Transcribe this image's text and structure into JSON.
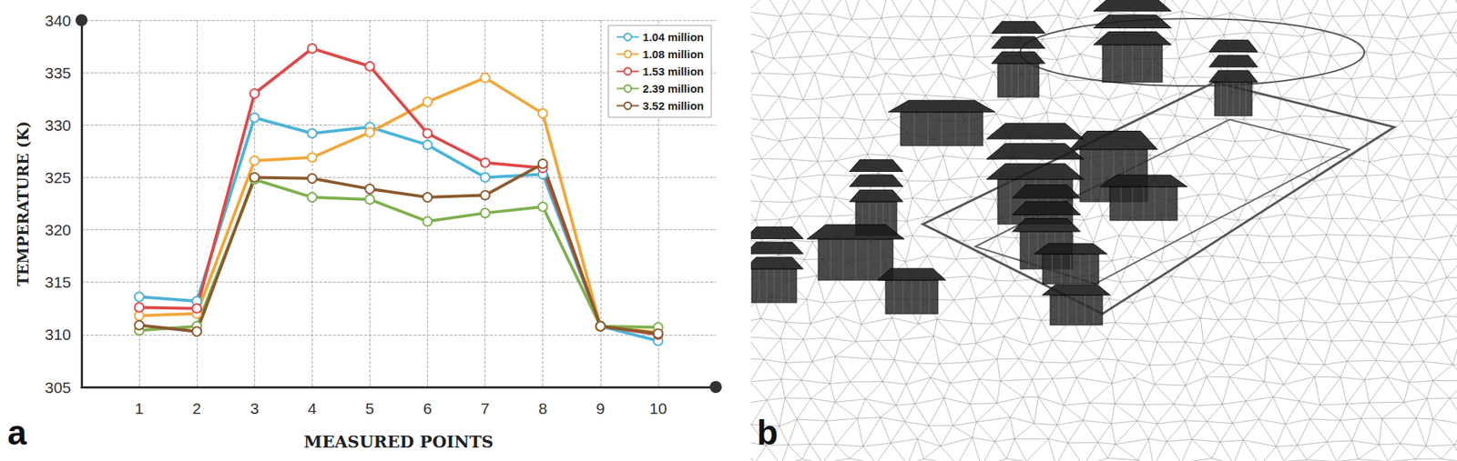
{
  "chart_data": {
    "type": "line",
    "x_label": "MEASURED POINTS",
    "y_label": "TEMPERATURE (K)",
    "x": [
      1,
      2,
      3,
      4,
      5,
      6,
      7,
      8,
      9,
      10
    ],
    "series": [
      {
        "name": "1.04 million",
        "color": "#4bb3d8",
        "marker": "circle",
        "values": [
          313.6,
          313.2,
          330.7,
          329.2,
          329.8,
          328.1,
          325.0,
          325.3,
          310.8,
          309.4
        ]
      },
      {
        "name": "1.08 million",
        "color": "#f2a63a",
        "marker": "circle",
        "values": [
          311.8,
          312.0,
          326.6,
          326.9,
          329.3,
          332.2,
          334.5,
          331.1,
          310.8,
          310.2
        ]
      },
      {
        "name": "1.53 million",
        "color": "#e04848",
        "marker": "circle",
        "values": [
          312.6,
          312.5,
          333.0,
          337.3,
          335.6,
          329.2,
          326.4,
          325.9,
          310.8,
          310.0
        ]
      },
      {
        "name": "2.39 million",
        "color": "#7fb04e",
        "marker": "circle",
        "values": [
          310.4,
          310.8,
          324.8,
          323.1,
          322.9,
          320.8,
          321.6,
          322.2,
          310.8,
          310.7
        ]
      },
      {
        "name": "3.52 million",
        "color": "#8a5a2e",
        "marker": "circle",
        "values": [
          310.9,
          310.3,
          325.0,
          324.9,
          323.9,
          323.1,
          323.3,
          326.3,
          310.8,
          310.1
        ]
      }
    ],
    "xlim": [
      0,
      11
    ],
    "xticks": [
      1,
      2,
      3,
      4,
      5,
      6,
      7,
      8,
      9,
      10
    ],
    "ylim": [
      305,
      340
    ],
    "yticks": [
      305,
      310,
      315,
      320,
      325,
      330,
      335,
      340
    ],
    "grid": true,
    "legend": "upper right"
  },
  "panel_labels": [
    "a",
    "b"
  ]
}
